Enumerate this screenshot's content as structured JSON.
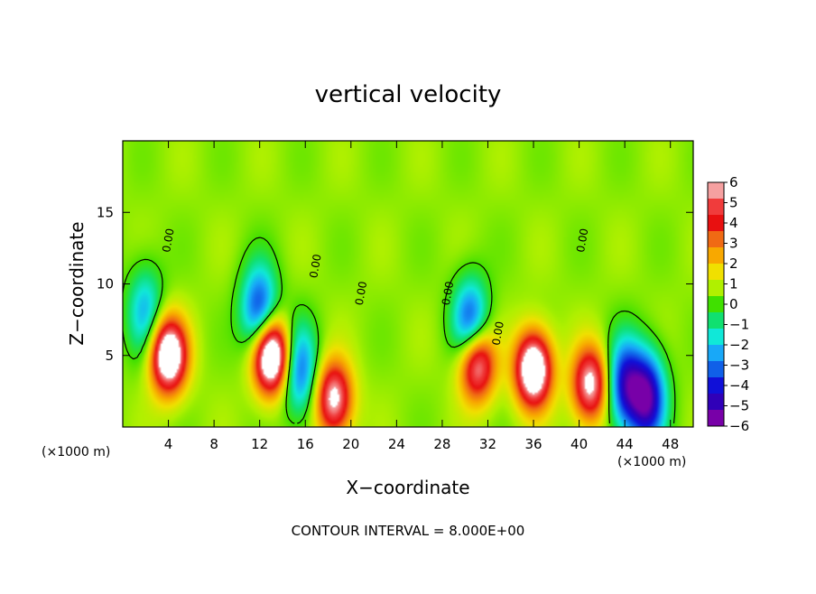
{
  "chart_data": {
    "type": "heatmap",
    "title": "vertical velocity",
    "xlabel": "X−coordinate",
    "ylabel": "Z−coordinate",
    "x_unit_left": "(×1000 m)",
    "x_unit_right": "(×1000 m)",
    "footer": "CONTOUR INTERVAL = 8.000E+00",
    "xlim": [
      0,
      50
    ],
    "ylim": [
      0,
      20
    ],
    "x_ticks": [
      4,
      8,
      12,
      16,
      20,
      24,
      28,
      32,
      36,
      40,
      44,
      48
    ],
    "y_ticks": [
      5,
      10,
      15
    ],
    "zlim": [
      -6,
      6
    ],
    "colorbar": {
      "ticks": [
        "6",
        "5",
        "4",
        "3",
        "2",
        "1",
        "0",
        "−1",
        "−2",
        "−3",
        "−4",
        "−5",
        "−6"
      ],
      "colors": [
        "#f5a0a0",
        "#f03c3c",
        "#e81010",
        "#f06a14",
        "#f8a800",
        "#f0e000",
        "#b0f000",
        "#40e000",
        "#10e070",
        "#10e8d8",
        "#18a8f8",
        "#1060e8",
        "#1010d8",
        "#3000b8",
        "#7800a8"
      ]
    },
    "contour_labels": [
      "0.00",
      "0.00",
      "0.00",
      "0.00",
      "0.00",
      "0.00"
    ],
    "features": [
      {
        "kind": "updraft",
        "x": 4,
        "z": 5,
        "strength": 8
      },
      {
        "kind": "updraft",
        "x": 13,
        "z": 5,
        "strength": 9
      },
      {
        "kind": "updraft",
        "x": 18.5,
        "z": 2,
        "strength": 6
      },
      {
        "kind": "updraft",
        "x": 31,
        "z": 4.5,
        "strength": 7
      },
      {
        "kind": "updraft",
        "x": 36,
        "z": 4,
        "strength": 8
      },
      {
        "kind": "updraft",
        "x": 41,
        "z": 3,
        "strength": 6
      },
      {
        "kind": "downdraft",
        "x": 2,
        "z": 8,
        "strength": -3
      },
      {
        "kind": "downdraft",
        "x": 12,
        "z": 8,
        "strength": -5
      },
      {
        "kind": "downdraft",
        "x": 15.5,
        "z": 4,
        "strength": -4
      },
      {
        "kind": "downdraft",
        "x": 30.5,
        "z": 7,
        "strength": -5
      },
      {
        "kind": "downdraft",
        "x": 44,
        "z": 3,
        "strength": -5
      },
      {
        "kind": "downdraft",
        "x": 46,
        "z": 2,
        "strength": -6
      }
    ]
  }
}
